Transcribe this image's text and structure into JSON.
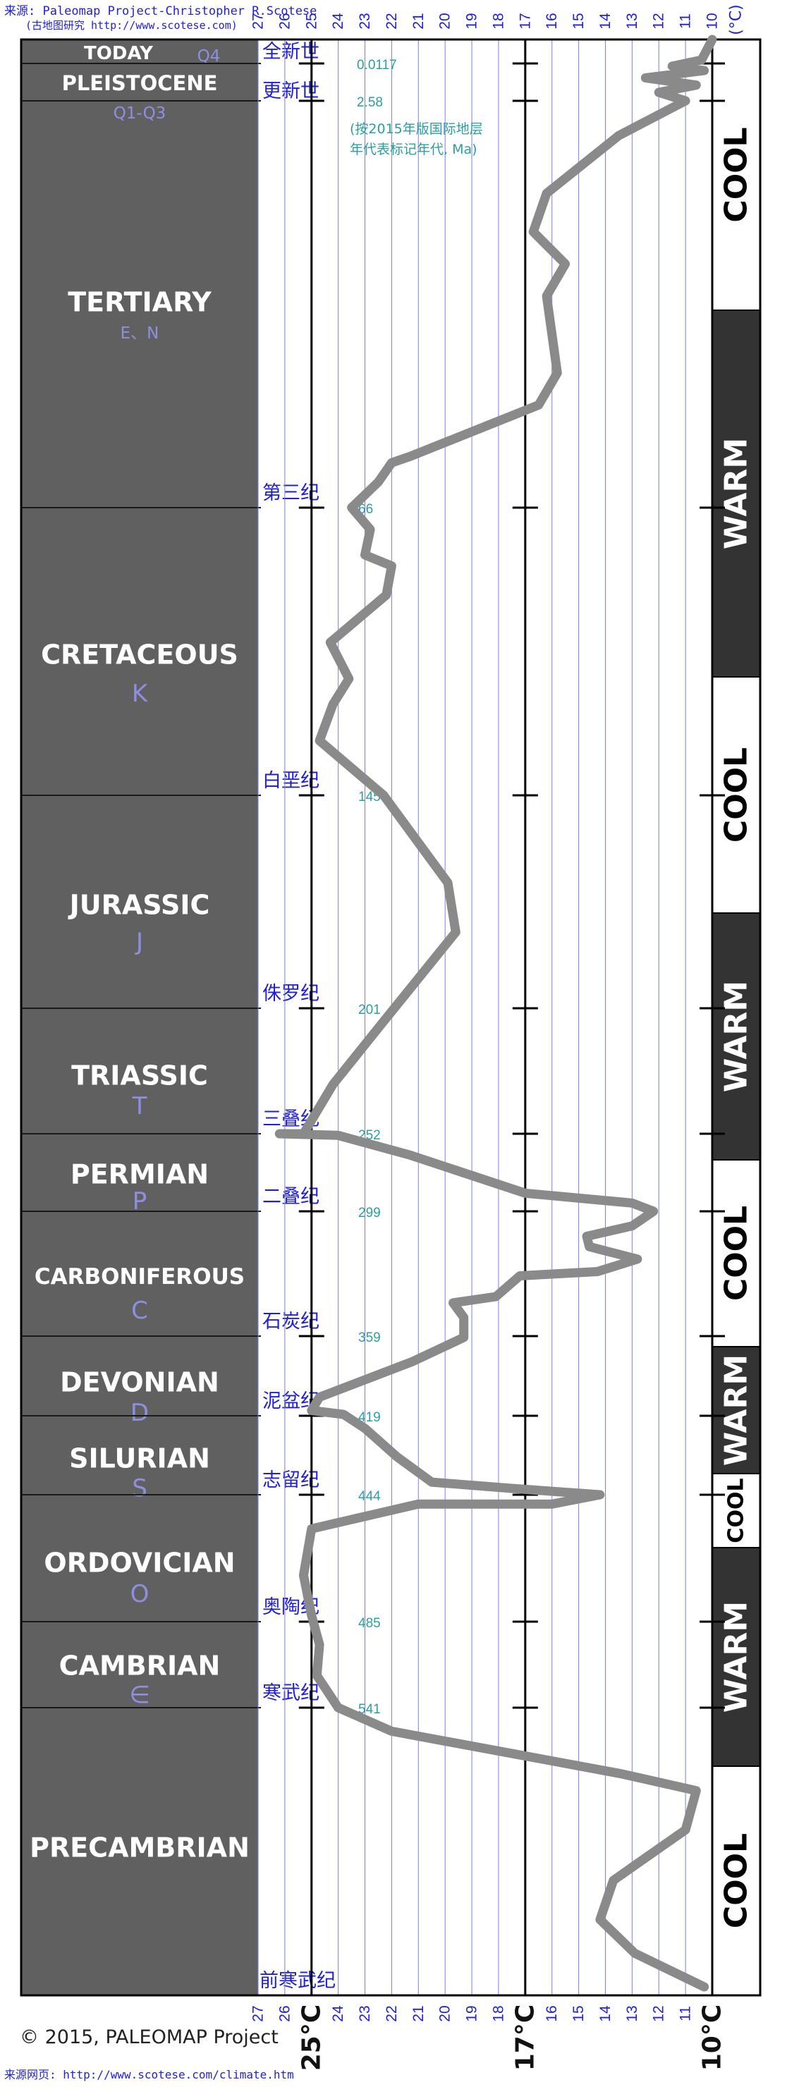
{
  "source": {
    "line1": "来源: Paleomap Project-Christopher R.Scotese",
    "line2": "(古地图研究 http://www.scotese.com)"
  },
  "note": {
    "line1": "(按2015年版国际地层",
    "line2": "年代表标记年代, Ma)"
  },
  "footer": {
    "copyright": "© 2015, PALEOMAP Project",
    "url": "来源网页: http://www.scotese.com/climate.htm"
  },
  "chart_data": {
    "type": "line",
    "top_axis_unit": "(°C)",
    "temperature_ticks": [
      "27",
      "26",
      "25",
      "24",
      "23",
      "22",
      "21",
      "20",
      "19",
      "18",
      "17",
      "16",
      "15",
      "14",
      "13",
      "12",
      "11",
      "10"
    ],
    "major_labels": [
      "25°C",
      "17°C",
      "10°C"
    ],
    "periods": [
      {
        "name": "TODAY",
        "code": "Q4",
        "cn": "全新世",
        "age": "0.0117"
      },
      {
        "name": "PLEISTOCENE",
        "code": "Q1-Q3",
        "cn": "更新世",
        "age": "2.58"
      },
      {
        "name": "TERTIARY",
        "code": "E、N",
        "cn": "第三纪",
        "age": "66"
      },
      {
        "name": "CRETACEOUS",
        "code": "K",
        "cn": "白垩纪",
        "age": "145"
      },
      {
        "name": "JURASSIC",
        "code": "J",
        "cn": "侏罗纪",
        "age": "201"
      },
      {
        "name": "TRIASSIC",
        "code": "T",
        "cn": "三叠纪",
        "age": "252"
      },
      {
        "name": "PERMIAN",
        "code": "P",
        "cn": "二叠纪",
        "age": "299"
      },
      {
        "name": "CARBONIFEROUS",
        "code": "C",
        "cn": "石炭纪",
        "age": "359"
      },
      {
        "name": "DEVONIAN",
        "code": "D",
        "cn": "泥盆纪",
        "age": "419"
      },
      {
        "name": "SILURIAN",
        "code": "S",
        "cn": "志留纪",
        "age": "444"
      },
      {
        "name": "ORDOVICIAN",
        "code": "O",
        "cn": "奥陶纪",
        "age": "485"
      },
      {
        "name": "CAMBRIAN",
        "code": "∈",
        "cn": "寒武纪",
        "age": "541"
      },
      {
        "name": "PRECAMBRIAN",
        "code": "",
        "cn": "前寒武纪",
        "age": ""
      }
    ],
    "climate_bands": [
      "COOL",
      "WARM",
      "COOL",
      "WARM",
      "COOL",
      "WARM",
      "COOL",
      "WARM",
      "COOL"
    ],
    "temperature_curve": [
      [
        10.0,
        0
      ],
      [
        10.4,
        0.01
      ],
      [
        11.5,
        0.2
      ],
      [
        10.3,
        0.5
      ],
      [
        12.5,
        1.0
      ],
      [
        10.6,
        1.5
      ],
      [
        12.0,
        2.0
      ],
      [
        11.0,
        2.58
      ],
      [
        13.5,
        8
      ],
      [
        16.2,
        17
      ],
      [
        16.7,
        23
      ],
      [
        15.5,
        28
      ],
      [
        16.2,
        33
      ],
      [
        15.8,
        45
      ],
      [
        16.5,
        50
      ],
      [
        21.3,
        58
      ],
      [
        22.0,
        59
      ],
      [
        22.5,
        62
      ],
      [
        23.5,
        66
      ],
      [
        22.8,
        72
      ],
      [
        23.0,
        79
      ],
      [
        22.0,
        82
      ],
      [
        22.2,
        90
      ],
      [
        24.3,
        103
      ],
      [
        23.6,
        113
      ],
      [
        24.2,
        120
      ],
      [
        24.7,
        130
      ],
      [
        22.3,
        145
      ],
      [
        19.9,
        168
      ],
      [
        19.6,
        181
      ],
      [
        22.5,
        209
      ],
      [
        24.2,
        232
      ],
      [
        25.3,
        252
      ],
      [
        26.2,
        252
      ],
      [
        24.0,
        253
      ],
      [
        21.3,
        265
      ],
      [
        17.0,
        288
      ],
      [
        13.0,
        294
      ],
      [
        12.2,
        299
      ],
      [
        13.0,
        306
      ],
      [
        14.7,
        311
      ],
      [
        14.6,
        316
      ],
      [
        12.8,
        322
      ],
      [
        14.3,
        328
      ],
      [
        17.2,
        330
      ],
      [
        18.1,
        340
      ],
      [
        19.7,
        343
      ],
      [
        19.3,
        350
      ],
      [
        19.3,
        360
      ],
      [
        21.2,
        378
      ],
      [
        24.7,
        405
      ],
      [
        25.0,
        415
      ],
      [
        23.8,
        418
      ],
      [
        23.0,
        423
      ],
      [
        21.8,
        432
      ],
      [
        20.5,
        440
      ],
      [
        17.5,
        442
      ],
      [
        14.2,
        444
      ],
      [
        16.0,
        447
      ],
      [
        21.0,
        447
      ],
      [
        25.0,
        455
      ],
      [
        25.3,
        470
      ],
      [
        25.0,
        483
      ],
      [
        24.7,
        500
      ],
      [
        24.8,
        520
      ],
      [
        24.0,
        541
      ],
      [
        22.0,
        562
      ],
      [
        13.4,
        600
      ],
      [
        10.6,
        615
      ],
      [
        11.0,
        650
      ],
      [
        13.7,
        695
      ],
      [
        14.2,
        730
      ],
      [
        12.9,
        760
      ],
      [
        10.3,
        790
      ]
    ]
  }
}
